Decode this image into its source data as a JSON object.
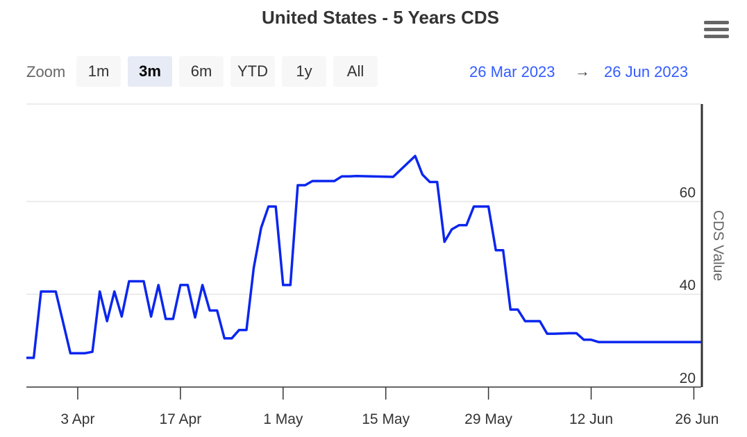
{
  "chart_data": {
    "type": "line",
    "title": "United States - 5 Years CDS",
    "ylabel": "CDS Value",
    "ylim": [
      20,
      81
    ],
    "xlim": [
      "2023-03-26",
      "2023-06-26"
    ],
    "x_ticks": [
      "3 Apr",
      "17 Apr",
      "1 May",
      "15 May",
      "29 May",
      "12 Jun",
      "26 Jun"
    ],
    "y_ticks": [
      20,
      40,
      60
    ],
    "grid": true,
    "legend": "none",
    "line_color": "#0a26ee",
    "series": [
      {
        "x": [
          "2023-03-26",
          "2023-03-27",
          "2023-03-28",
          "2023-03-29",
          "2023-03-30",
          "2023-03-31",
          "2023-04-01",
          "2023-04-02",
          "2023-04-03",
          "2023-04-04",
          "2023-04-05",
          "2023-04-06",
          "2023-04-07",
          "2023-04-08",
          "2023-04-09",
          "2023-04-10",
          "2023-04-11",
          "2023-04-12",
          "2023-04-13",
          "2023-04-14",
          "2023-04-15",
          "2023-04-16",
          "2023-04-17",
          "2023-04-18",
          "2023-04-19",
          "2023-04-20",
          "2023-04-21",
          "2023-04-22",
          "2023-04-23",
          "2023-04-24",
          "2023-04-25",
          "2023-04-26",
          "2023-04-27",
          "2023-04-28",
          "2023-04-29",
          "2023-04-30",
          "2023-05-01",
          "2023-05-02",
          "2023-05-03",
          "2023-05-04",
          "2023-05-07",
          "2023-05-08",
          "2023-05-09",
          "2023-05-10",
          "2023-05-12",
          "2023-05-15",
          "2023-05-18",
          "2023-05-19",
          "2023-05-20",
          "2023-05-21",
          "2023-05-22",
          "2023-05-23",
          "2023-05-24",
          "2023-05-25",
          "2023-05-26",
          "2023-05-27",
          "2023-05-28",
          "2023-05-29",
          "2023-05-30",
          "2023-05-31",
          "2023-06-01",
          "2023-06-02",
          "2023-06-04",
          "2023-06-05",
          "2023-06-06",
          "2023-06-08",
          "2023-06-09",
          "2023-06-10",
          "2023-06-11",
          "2023-06-12",
          "2023-06-13",
          "2023-06-26"
        ],
        "values": [
          26.3,
          26.3,
          40.6,
          40.6,
          40.6,
          34.0,
          27.3,
          27.3,
          27.3,
          27.6,
          40.6,
          34.2,
          40.6,
          35.2,
          42.8,
          42.8,
          42.8,
          35.2,
          42.0,
          34.7,
          34.7,
          42.0,
          42.0,
          35.0,
          42.0,
          36.5,
          36.5,
          30.5,
          30.5,
          32.3,
          32.3,
          45.7,
          54.3,
          58.9,
          58.9,
          42.0,
          42.0,
          63.5,
          63.5,
          64.4,
          64.4,
          65.4,
          65.4,
          65.5,
          65.4,
          65.3,
          69.8,
          65.8,
          64.2,
          64.2,
          51.3,
          54.0,
          54.9,
          54.9,
          58.9,
          58.9,
          58.9,
          49.5,
          49.5,
          36.7,
          36.7,
          34.2,
          34.2,
          31.5,
          31.5,
          31.6,
          31.6,
          30.2,
          30.2,
          29.7,
          29.7,
          29.7
        ]
      }
    ]
  },
  "toolbar": {
    "zoom_label": "Zoom",
    "buttons": [
      "1m",
      "3m",
      "6m",
      "YTD",
      "1y",
      "All"
    ],
    "active_button": "3m",
    "range_from": "26 Mar 2023",
    "range_arrow": "→",
    "range_to": "26 Jun 2023"
  },
  "colors": {
    "line": "#0a26ee",
    "range_text": "#335cff",
    "grid": "#e6e6e6"
  },
  "icons": {
    "menu": "hamburger-menu-icon"
  }
}
